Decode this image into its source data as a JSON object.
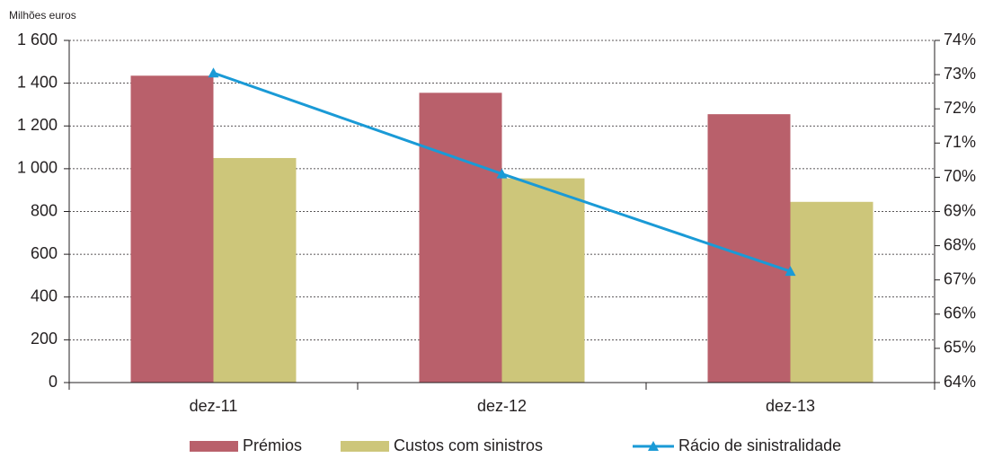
{
  "chart_data": {
    "type": "bar",
    "y_label": "Milhões euros",
    "categories": [
      "dez-11",
      "dez-12",
      "dez-13"
    ],
    "series": [
      {
        "name": "Prémios",
        "color": "#b9606b",
        "values": [
          1435,
          1355,
          1255
        ]
      },
      {
        "name": "Custos com sinistros",
        "color": "#cdc67a",
        "values": [
          1050,
          955,
          845
        ]
      },
      {
        "name": "Rácio de sinistralidade",
        "color": "#1a9ad6",
        "type": "line",
        "axis": "y2",
        "values": [
          73.05,
          70.1,
          67.25
        ]
      }
    ],
    "ylim": [
      0,
      1600
    ],
    "yticks": [
      0,
      200,
      400,
      600,
      800,
      {
        "value": 1000,
        "label": "1 000"
      },
      {
        "value": 1200,
        "label": "1 200"
      },
      {
        "value": 1400,
        "label": "1 400"
      },
      {
        "value": 1600,
        "label": "1 600"
      }
    ],
    "y2lim": [
      64,
      74
    ],
    "y2ticks": [
      {
        "value": 64,
        "label": "64%"
      },
      {
        "value": 65,
        "label": "65%"
      },
      {
        "value": 66,
        "label": "66%"
      },
      {
        "value": 67,
        "label": "67%"
      },
      {
        "value": 68,
        "label": "68%"
      },
      {
        "value": 69,
        "label": "69%"
      },
      {
        "value": 70,
        "label": "70%"
      },
      {
        "value": 71,
        "label": "71%"
      },
      {
        "value": 72,
        "label": "72%"
      },
      {
        "value": 73,
        "label": "73%"
      },
      {
        "value": 74,
        "label": "74%"
      }
    ],
    "grid": true,
    "legend": "bottom"
  }
}
